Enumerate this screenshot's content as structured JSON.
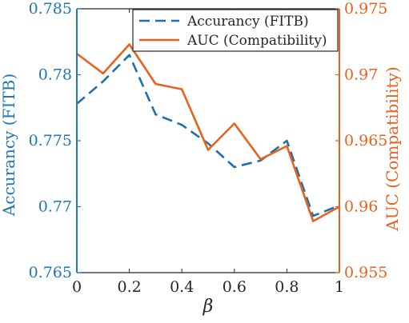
{
  "chart_data": {
    "type": "line",
    "x": [
      0,
      0.1,
      0.2,
      0.3,
      0.4,
      0.5,
      0.6,
      0.7,
      0.8,
      0.9,
      1.0
    ],
    "xlabel": "β",
    "xlim": [
      0,
      1
    ],
    "xticks": [
      0,
      0.2,
      0.4,
      0.6,
      0.8,
      1
    ],
    "xtick_labels": [
      "0",
      "0.2",
      "0.4",
      "0.6",
      "0.8",
      "1"
    ],
    "y_left": {
      "label": "Accurancy (FITB)",
      "lim": [
        0.765,
        0.785
      ],
      "ticks": [
        0.765,
        0.77,
        0.775,
        0.78,
        0.785
      ],
      "tick_labels": [
        "0.765",
        "0.77",
        "0.775",
        "0.78",
        "0.785"
      ],
      "color": "#1f77b4"
    },
    "y_right": {
      "label": "AUC (Compatibility)",
      "lim": [
        0.955,
        0.975
      ],
      "ticks": [
        0.955,
        0.96,
        0.965,
        0.97,
        0.975
      ],
      "tick_labels": [
        "0.955",
        "0.96",
        "0.965",
        "0.97",
        "0.975"
      ],
      "color": "#e8611f"
    },
    "series": [
      {
        "name": "Accurancy (FITB)",
        "axis": "left",
        "style": "dashed",
        "color": "#1f6fae",
        "values": [
          0.7778,
          0.7795,
          0.7815,
          0.777,
          0.7762,
          0.7748,
          0.773,
          0.7735,
          0.775,
          0.7693,
          0.7701
        ]
      },
      {
        "name": "AUC (Compatibility)",
        "axis": "right",
        "style": "solid",
        "color": "#e8611f",
        "values": [
          0.9716,
          0.9701,
          0.9723,
          0.9693,
          0.9689,
          0.9643,
          0.9663,
          0.9636,
          0.9646,
          0.9589,
          0.96
        ]
      }
    ],
    "legend": "top-right",
    "grid": false
  }
}
